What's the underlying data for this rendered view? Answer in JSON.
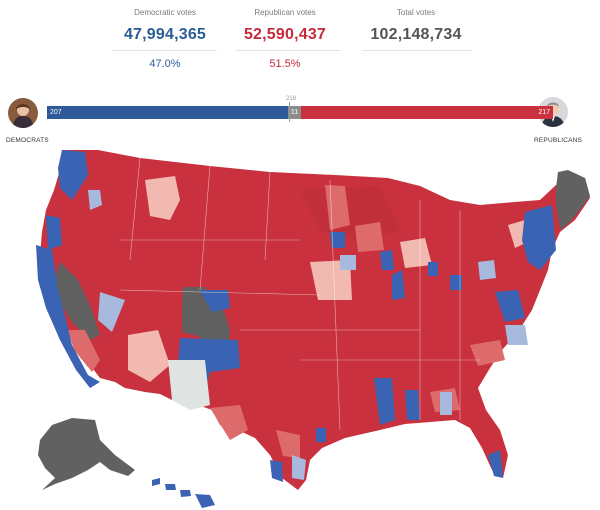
{
  "summary": {
    "democratic": {
      "label": "Democratic votes",
      "votes": "47,994,365",
      "percent": "47.0%"
    },
    "republican": {
      "label": "Republican votes",
      "votes": "52,590,437",
      "percent": "51.5%"
    },
    "total": {
      "label": "Total votes",
      "votes": "102,148,734"
    }
  },
  "seat_bar": {
    "dem_seats": "207",
    "undecided": "11",
    "rep_seats": "217",
    "majority_label": "218",
    "dem_fraction": 0.4759,
    "undecided_fraction": 0.0253,
    "rep_fraction": 0.4988
  },
  "parties": {
    "left_label": "DEMOCRATS",
    "right_label": "REPUBLICANS"
  },
  "colors": {
    "dem": "#2e5a9a",
    "rep": "#c8313d",
    "undecided": "#8c8c8c",
    "map_dark_red": "#c8313d",
    "map_mid_red": "#de6b6b",
    "map_light_red": "#f2b9b1",
    "map_blue": "#3a64b3",
    "map_light_blue": "#a7b9dd",
    "map_gray": "#616161",
    "map_lightgray": "#dfe3e1"
  },
  "icons": {
    "dem_avatar": "person-portrait-icon",
    "rep_avatar": "person-portrait-icon"
  }
}
